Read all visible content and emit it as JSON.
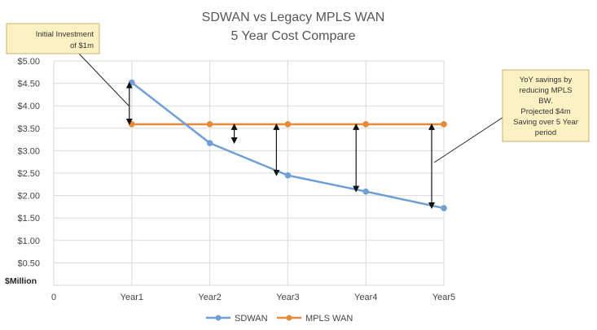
{
  "chart_data": {
    "type": "line",
    "title_lines": [
      "SDWAN vs Legacy MPLS WAN",
      "5 Year Cost Compare"
    ],
    "ylabel": "$Million",
    "x_origin_label": "0",
    "categories": [
      "Year1",
      "Year2",
      "Year3",
      "Year4",
      "Year5"
    ],
    "ylim": [
      0,
      5.0
    ],
    "y_ticks": [
      "$0.50",
      "$1.00",
      "$1.50",
      "$2.00",
      "$2.50",
      "$3.00",
      "$3.50",
      "$4.00",
      "$4.50",
      "$5.00"
    ],
    "grid": true,
    "legend_position": "bottom",
    "series": [
      {
        "name": "SDWAN",
        "values": [
          4.52,
          3.17,
          2.45,
          2.09,
          1.72
        ],
        "color": "#6f9fd4"
      },
      {
        "name": "MPLS WAN",
        "values": [
          3.59,
          3.59,
          3.59,
          3.59,
          3.59
        ],
        "color": "#e58a3a"
      }
    ],
    "annotations": [
      {
        "lines": [
          "Initial Investment",
          "of $1m"
        ]
      },
      {
        "lines": [
          "YoY savings by",
          "reducing MPLS",
          "BW.",
          "Projected $4m",
          "Saving over 5 Year",
          "period"
        ]
      }
    ]
  }
}
